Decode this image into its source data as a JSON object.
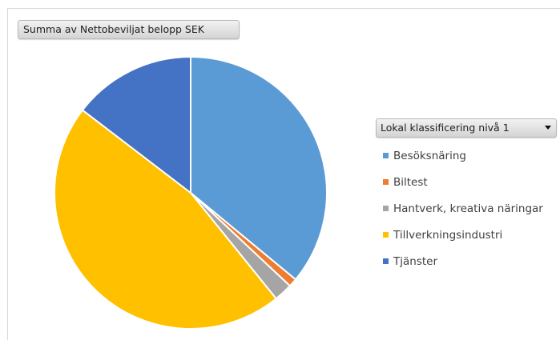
{
  "pivot": {
    "value_field": "Summa av Nettobeviljat belopp SEK",
    "legend_field": "Lokal klassificering nivå 1"
  },
  "chart_data": {
    "type": "pie",
    "categories": [
      "Besöksnäring",
      "Biltest",
      "Hantverk, kreativa näringar",
      "Tillverkningsindustri",
      "Tjänster"
    ],
    "values": [
      36.0,
      1.0,
      2.2,
      46.2,
      14.6
    ],
    "colors": [
      "#5b9bd5",
      "#ed7d31",
      "#a5a5a5",
      "#ffc000",
      "#4472c4"
    ],
    "legend_position": "right"
  },
  "icons": {
    "dropdown": "dropdown-arrow-icon"
  }
}
